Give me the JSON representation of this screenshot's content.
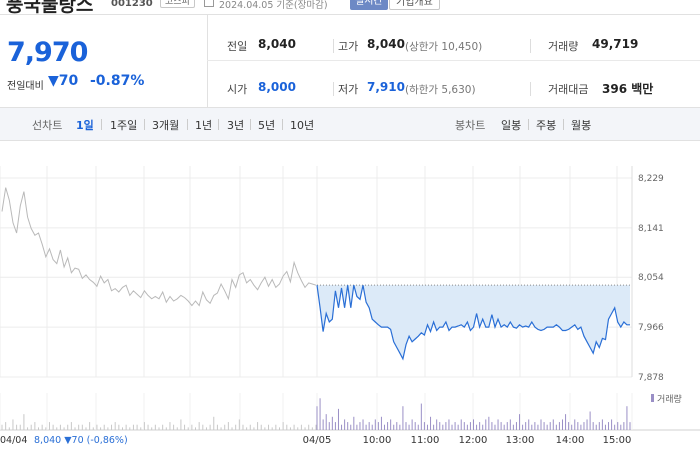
{
  "header": {
    "stock_name": "풍국물랑스",
    "stock_code": "001230",
    "market": "코스피",
    "date": "2024.04.05 기준(장마감)",
    "realtime": "실시간",
    "company_info": "기업개요"
  },
  "summary": {
    "price": "7,970",
    "change_label": "전일대비",
    "change_amount": "▼70",
    "change_rate": "-0.87%",
    "prev_close_label": "전일",
    "prev_close": "8,040",
    "high_label": "고가",
    "high": "8,040",
    "upper_limit": "(상한가 10,450)",
    "volume_label": "거래량",
    "volume": "49,719",
    "open_label": "시가",
    "open": "8,000",
    "low_label": "저가",
    "low": "7,910",
    "lower_limit": "(하한가 5,630)",
    "trade_value_label": "거래대금",
    "trade_value": "396 백만"
  },
  "tabs": {
    "line_chart_label": "선차트",
    "periods": [
      "1일",
      "1주일",
      "3개월",
      "1년",
      "3년",
      "5년",
      "10년"
    ],
    "active": "1일",
    "candle_label": "봉차트",
    "candles": [
      "일봉",
      "주봉",
      "월봉"
    ]
  },
  "chart_data": {
    "type": "line",
    "ylim": [
      7878,
      8229
    ],
    "yticks": [
      8229,
      8141,
      8054,
      7966,
      7878
    ],
    "xticks": [
      "04/05",
      "10:00",
      "11:00",
      "12:00",
      "13:00",
      "14:00",
      "15:00"
    ],
    "prev_close": 8040,
    "volume_legend": "거래량",
    "prev_day_label": "04/04",
    "prev_day_info": "8,040 ▼70 (-0,86%)",
    "series": [
      {
        "values_prev_day": [
          8170,
          8212,
          8190,
          8150,
          8132,
          8180,
          8205,
          8160,
          8140,
          8128,
          8132,
          8112,
          8090,
          8104,
          8085,
          8078,
          8102,
          8072,
          8088,
          8062,
          8070,
          8068,
          8052,
          8058,
          8050,
          8045,
          8038,
          8056,
          8044,
          8050,
          8030,
          8034,
          8028,
          8036,
          8040,
          8022,
          8030,
          8024,
          8018,
          8030,
          8022,
          8016,
          8020,
          8016,
          8028,
          8010,
          8020,
          8012,
          8016,
          8022,
          8018,
          8012,
          8004,
          8012,
          8004,
          8028,
          8014,
          8008,
          8022,
          8026,
          8042,
          8030,
          8016,
          8050,
          8036,
          8058,
          8062,
          8044,
          8050,
          8040,
          8032,
          8044,
          8054,
          8038,
          8050,
          8036,
          8042,
          8056,
          8064,
          8046,
          8080,
          8062,
          8048,
          8036,
          8044,
          8042,
          8040
        ],
        "values_today": [
          8040,
          8000,
          7958,
          7990,
          7975,
          7980,
          8030,
          8000,
          8035,
          8000,
          8040,
          8000,
          8040,
          8020,
          8015,
          8040,
          8010,
          8000,
          7980,
          7975,
          7970,
          7966,
          7966,
          7966,
          7962,
          7940,
          7930,
          7920,
          7910,
          7935,
          7950,
          7940,
          7945,
          7950,
          7956,
          7952,
          7970,
          7958,
          7975,
          7960,
          7966,
          7966,
          7975,
          7960,
          7966,
          7966,
          7968,
          7970,
          7966,
          7975,
          7960,
          7966,
          7990,
          7966,
          7980,
          7966,
          7966,
          7988,
          7966,
          7980,
          7966,
          7970,
          7966,
          7975,
          7966,
          7964,
          7970,
          7966,
          7968,
          7966,
          7975,
          7966,
          7962,
          7960,
          7962,
          7966,
          7966,
          7966,
          7970,
          7966,
          7960,
          7960,
          7962,
          7966,
          7970,
          7962,
          7966,
          7950,
          7940,
          7930,
          7920,
          7940,
          7930,
          7946,
          7944,
          7980,
          7990,
          8000,
          7975,
          7966,
          7975,
          7970,
          7970
        ]
      }
    ],
    "volume_prev_day": [
      2,
      3,
      1,
      4,
      2,
      2,
      6,
      1,
      2,
      3,
      1,
      2,
      1,
      3,
      2,
      1,
      2,
      1,
      2,
      3,
      1,
      2,
      2,
      1,
      3,
      1,
      2,
      1,
      2,
      1,
      2,
      3,
      2,
      1,
      2,
      1,
      2,
      2,
      1,
      3,
      2,
      1,
      2,
      1,
      2,
      1,
      3,
      2,
      1,
      4,
      2,
      1,
      2,
      1,
      3,
      2,
      1,
      2,
      5,
      2,
      1,
      2,
      3,
      1,
      2,
      4,
      2,
      1,
      2,
      1,
      3,
      2,
      1,
      2,
      1,
      2,
      1,
      3,
      2,
      1,
      2,
      1,
      2,
      1,
      2,
      1,
      2
    ],
    "volume_today": [
      9,
      12,
      4,
      6,
      3,
      5,
      3,
      8,
      2,
      4,
      3,
      2,
      5,
      2,
      3,
      4,
      2,
      3,
      2,
      4,
      3,
      5,
      2,
      3,
      4,
      2,
      3,
      2,
      9,
      3,
      2,
      4,
      3,
      2,
      10,
      3,
      2,
      5,
      2,
      4,
      3,
      2,
      3,
      4,
      2,
      3,
      2,
      4,
      3,
      2,
      3,
      4,
      2,
      3,
      2,
      4,
      5,
      3,
      2,
      4,
      3,
      2,
      3,
      4,
      2,
      3,
      6,
      2,
      3,
      4,
      2,
      3,
      2,
      4,
      3,
      2,
      3,
      4,
      2,
      3,
      4,
      6,
      3,
      2,
      4,
      3,
      2,
      3,
      4,
      7,
      3,
      2,
      3,
      4,
      2,
      3,
      4,
      2,
      3,
      2,
      3,
      9,
      3
    ]
  }
}
